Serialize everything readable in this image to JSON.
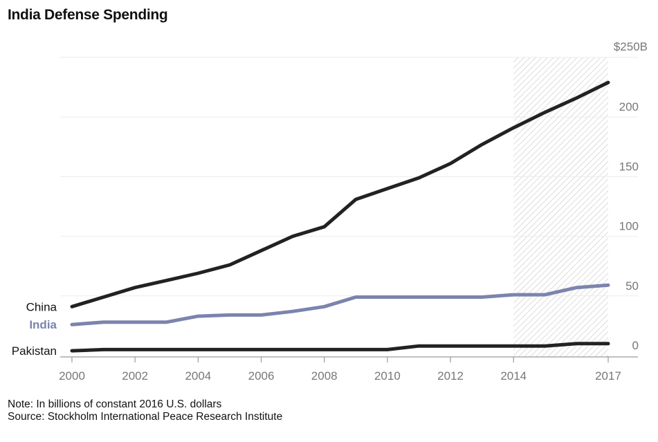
{
  "title": "India Defense Spending",
  "note": "Note: In billions of constant 2016 U.S. dollars",
  "source": "Source: Stockholm International Peace Research Institute",
  "chart_data": {
    "type": "line",
    "title": "India Defense Spending",
    "xlabel": "",
    "ylabel": "Billions of constant 2016 U.S. dollars",
    "x": [
      2000,
      2001,
      2002,
      2003,
      2004,
      2005,
      2006,
      2007,
      2008,
      2009,
      2010,
      2011,
      2012,
      2013,
      2014,
      2015,
      2016,
      2017
    ],
    "xlim": [
      2000,
      2017
    ],
    "ylim": [
      0,
      250
    ],
    "x_ticks": [
      "2000",
      "2002",
      "2004",
      "2006",
      "2008",
      "2010",
      "2012",
      "2014",
      "2017"
    ],
    "x_tick_values": [
      2000,
      2002,
      2004,
      2006,
      2008,
      2010,
      2012,
      2014,
      2017
    ],
    "y_ticks": [
      0,
      50,
      100,
      150,
      200,
      250
    ],
    "y_tick_labels": [
      "0",
      "50",
      "100",
      "150",
      "200",
      "$250B"
    ],
    "grid": true,
    "y_axis_side": "right",
    "shaded_region": {
      "from": 2014,
      "to": 2017,
      "pattern": "diagonal-hatch"
    },
    "legend": "inline-left",
    "series": [
      {
        "name": "China",
        "color": "#222222",
        "label_color": "#111111",
        "label_bold": false,
        "values": [
          41,
          49,
          57,
          63,
          69,
          76,
          88,
          100,
          108,
          131,
          140,
          149,
          161,
          177,
          191,
          204,
          216,
          229
        ]
      },
      {
        "name": "India",
        "color": "#7b84ad",
        "label_color": "#7b84ad",
        "label_bold": true,
        "values": [
          26,
          28,
          28,
          28,
          33,
          34,
          34,
          37,
          41,
          49,
          49,
          49,
          49,
          49,
          51,
          51,
          57,
          59
        ]
      },
      {
        "name": "Pakistan",
        "color": "#222222",
        "label_color": "#111111",
        "label_bold": false,
        "values": [
          4,
          5,
          5,
          5,
          5,
          5,
          5,
          5,
          5,
          5,
          5,
          8,
          8,
          8,
          8,
          8,
          10,
          10
        ]
      }
    ]
  }
}
